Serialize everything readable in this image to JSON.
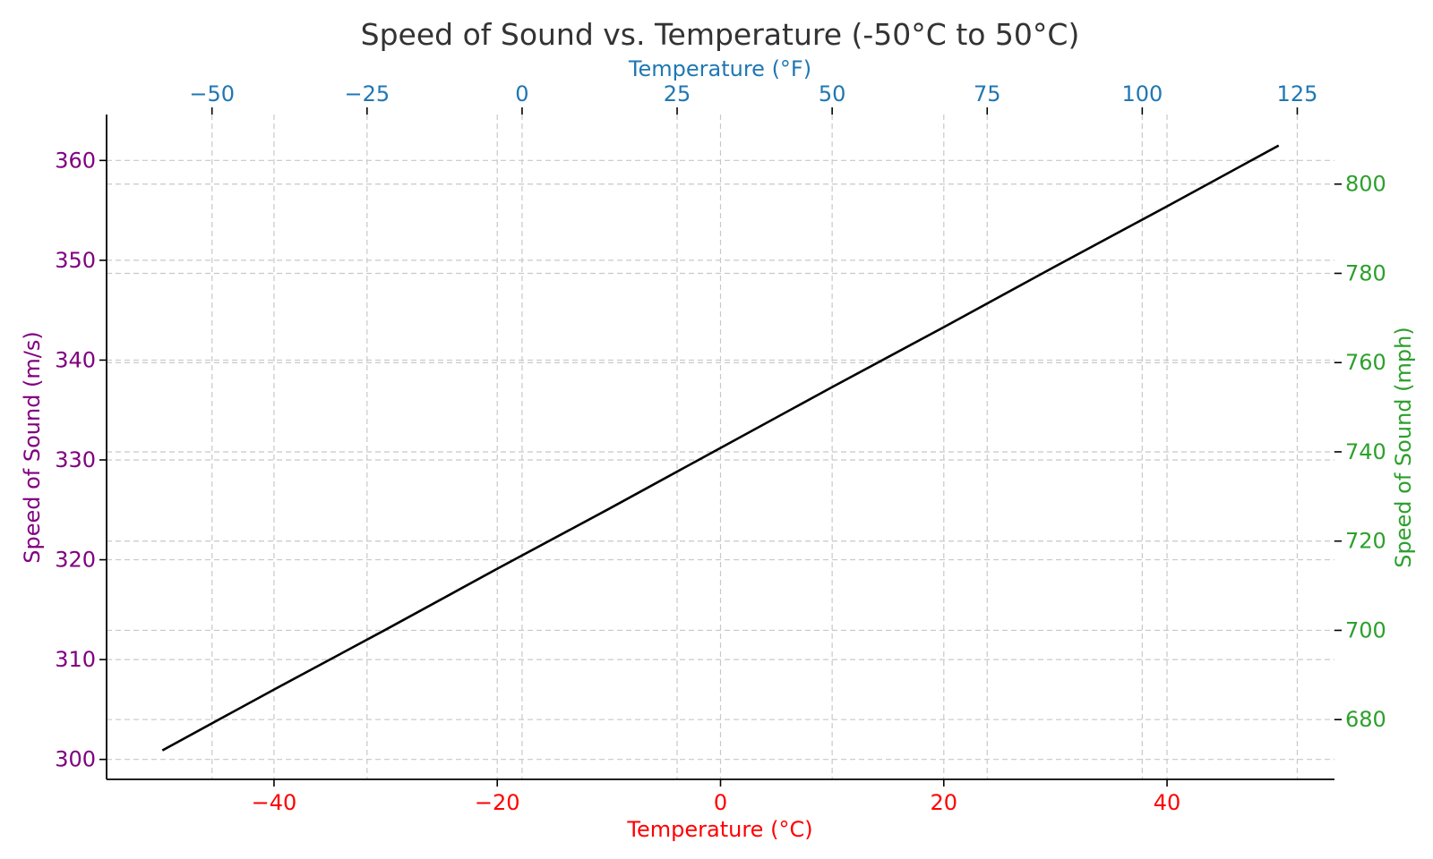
{
  "chart_data": {
    "type": "line",
    "title": "Speed of Sound vs. Temperature (-50°C to 50°C)",
    "xlabel": "Temperature (°C)",
    "ylabel": "Speed of Sound (m/s)",
    "x2label": "Temperature (°F)",
    "y2label": "Speed of Sound (mph)",
    "xlim": [
      -55,
      55
    ],
    "ylim": [
      298,
      364.6
    ],
    "x_ticks": [
      -40,
      -20,
      0,
      20,
      40
    ],
    "x_tick_labels": [
      "−40",
      "−20",
      "0",
      "20",
      "40"
    ],
    "y_ticks": [
      300,
      310,
      320,
      330,
      340,
      350,
      360
    ],
    "y_tick_labels": [
      "300",
      "310",
      "320",
      "330",
      "340",
      "350",
      "360"
    ],
    "x2_ticks_f": [
      -50,
      -25,
      0,
      25,
      50,
      75,
      100,
      125
    ],
    "x2_tick_labels": [
      "−50",
      "−25",
      "0",
      "25",
      "50",
      "75",
      "100",
      "125"
    ],
    "y2_ticks_mph": [
      680,
      700,
      720,
      740,
      760,
      780,
      800
    ],
    "y2_tick_labels": [
      "680",
      "700",
      "720",
      "740",
      "760",
      "780",
      "800"
    ],
    "grid": true,
    "series": [
      {
        "x": [
          -50,
          -40,
          -30,
          -20,
          -10,
          0,
          10,
          20,
          30,
          40,
          50
        ],
        "values": [
          300.9,
          307.0,
          313.0,
          319.1,
          325.1,
          331.2,
          337.3,
          343.3,
          349.4,
          355.4,
          361.5
        ]
      }
    ],
    "colors": {
      "line": "#000000",
      "x_axis": "#ff0000",
      "y_axis": "#800080",
      "x2_axis": "#1f77b4",
      "y2_axis": "#2ca02c",
      "title": "#333333",
      "grid": "#c8c8c8"
    }
  }
}
